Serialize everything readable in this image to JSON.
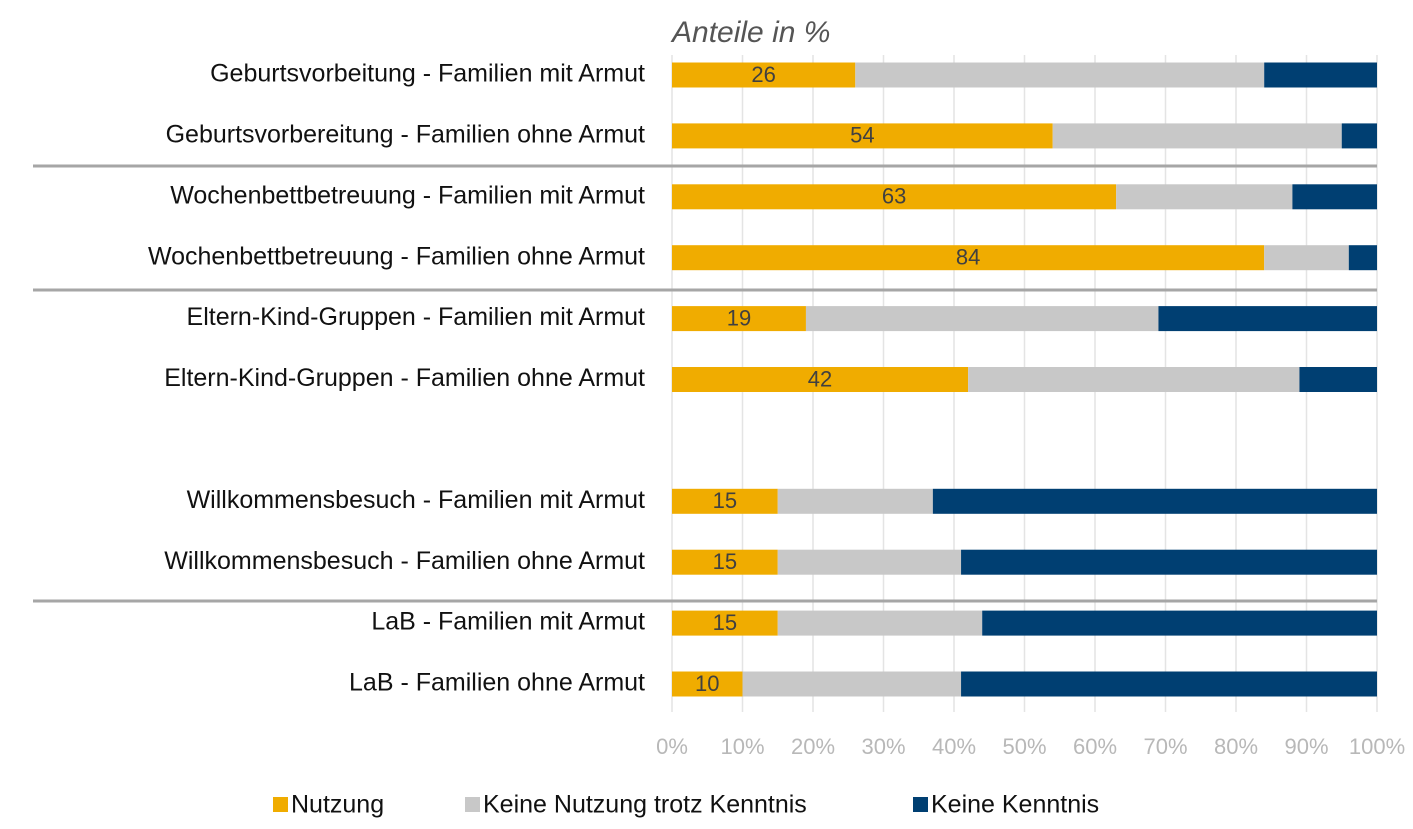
{
  "chart_data": {
    "type": "stacked_barh",
    "title": "Anteile in %",
    "categories": [
      "Geburtsvorbeitung - Familien mit Armut",
      "Geburtsvorbereitung - Familien ohne Armut",
      "Wochenbettbetreuung - Familien mit Armut",
      "Wochenbettbetreuung - Familien ohne Armut",
      "Eltern-Kind-Gruppen - Familien mit Armut",
      "Eltern-Kind-Gruppen - Familien ohne Armut",
      null,
      "Willkommensbesuch - Familien mit Armut",
      "Willkommensbesuch - Familien ohne Armut",
      "LaB - Familien mit Armut",
      "LaB - Familien ohne Armut"
    ],
    "series": [
      {
        "name": "Nutzung",
        "color": "#f0ac00",
        "values": [
          26,
          54,
          63,
          84,
          19,
          42,
          null,
          15,
          15,
          15,
          10
        ],
        "show_labels": true
      },
      {
        "name": "Keine Nutzung trotz Kenntnis",
        "color": "#c8c8c8",
        "values": [
          58,
          41,
          25,
          12,
          50,
          47,
          null,
          22,
          26,
          29,
          31
        ]
      },
      {
        "name": "Keine Kenntnis",
        "color": "#003f72",
        "values": [
          16,
          5,
          12,
          4,
          31,
          11,
          null,
          63,
          59,
          56,
          59
        ]
      }
    ],
    "xlim": [
      0,
      100
    ],
    "xticks": [
      {
        "value": 0,
        "label": "0%"
      },
      {
        "value": 10,
        "label": "10%"
      },
      {
        "value": 20,
        "label": "20%"
      },
      {
        "value": 30,
        "label": "30%"
      },
      {
        "value": 40,
        "label": "40%"
      },
      {
        "value": 50,
        "label": "50%"
      },
      {
        "value": 60,
        "label": "60%"
      },
      {
        "value": 70,
        "label": "70%"
      },
      {
        "value": 80,
        "label": "80%"
      },
      {
        "value": 90,
        "label": "90%"
      },
      {
        "value": 100,
        "label": "100%"
      }
    ],
    "grid": true,
    "legend": "bottom"
  }
}
